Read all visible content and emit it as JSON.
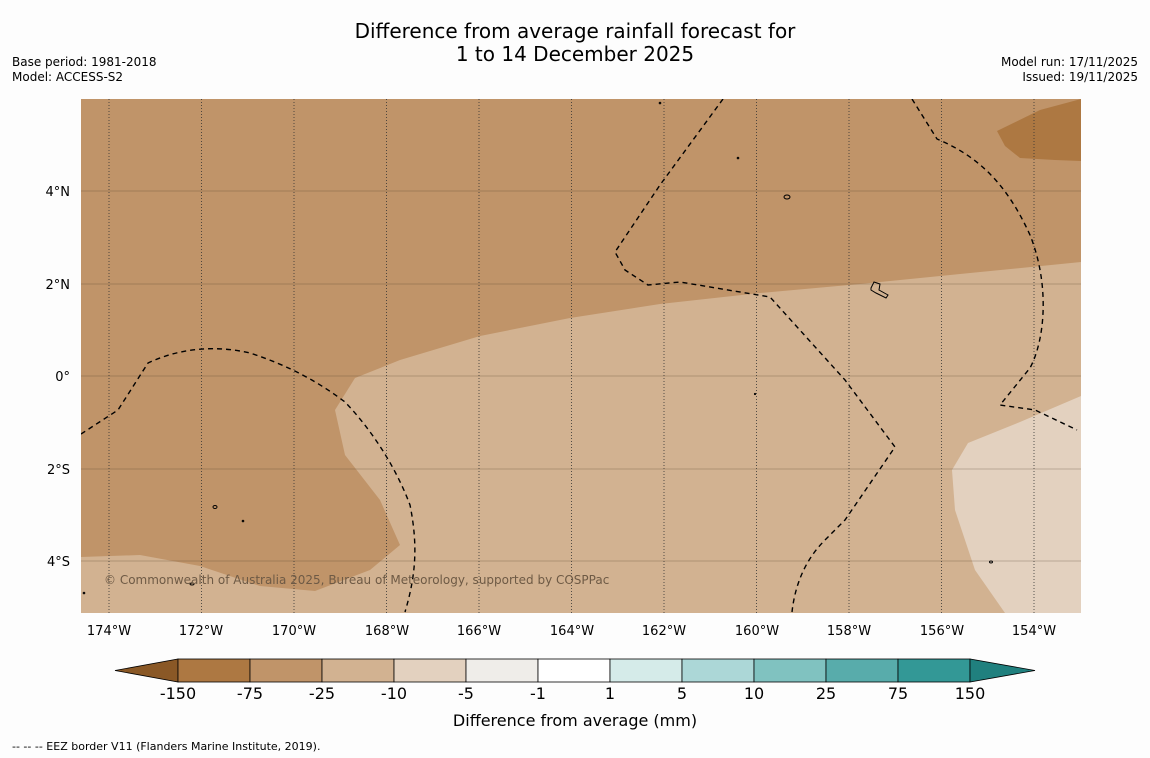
{
  "title": {
    "line1": "Difference from average rainfall forecast for",
    "line2": "1 to 14 December 2025"
  },
  "meta": {
    "base_period": "Base period: 1981-2018",
    "model": "Model: ACCESS-S2",
    "model_run": "Model run: 17/11/2025",
    "issued": "Issued: 19/11/2025"
  },
  "map": {
    "copyright": "© Commonwealth of Australia 2025, Bureau of Meteorology, supported by COSPPac",
    "lon_labels": [
      "174°W",
      "172°W",
      "170°W",
      "168°W",
      "166°W",
      "164°W",
      "162°W",
      "160°W",
      "158°W",
      "156°W",
      "154°W"
    ],
    "lat_labels": [
      "4°N",
      "2°N",
      "0°",
      "2°S",
      "4°S"
    ],
    "regions": [
      {
        "name": "dry-moderate",
        "category": "-75 to -25"
      },
      {
        "name": "dry-light",
        "category": "-25 to -10"
      },
      {
        "name": "dry-slight",
        "category": "-10 to -5"
      },
      {
        "name": "dry-strong-patch",
        "category": "-150 to -75"
      }
    ]
  },
  "colorbar": {
    "title": "Difference from average (mm)",
    "ticks": [
      "-150",
      "-75",
      "-25",
      "-10",
      "-5",
      "-1",
      "1",
      "5",
      "10",
      "25",
      "75",
      "150"
    ],
    "colors": [
      "#ad7842",
      "#c09469",
      "#d2b291",
      "#e3d1bf",
      "#efede9",
      "#ffffff",
      "#d5ebe9",
      "#acd7d7",
      "#80c2c0",
      "#58acab",
      "#339896"
    ],
    "under_color": "#8a5826",
    "over_color": "#20807e"
  },
  "footnote": "--  --  -- EEZ border V11 (Flanders Marine Institute, 2019)."
}
